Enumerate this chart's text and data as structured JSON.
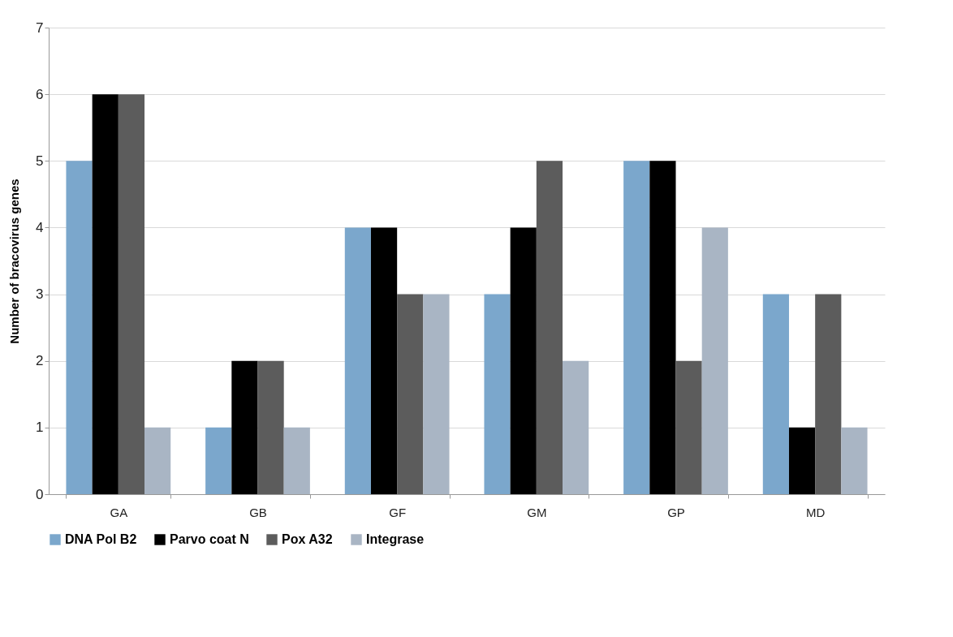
{
  "chart_data": {
    "type": "bar",
    "ylabel": "Number of bracovirus genes",
    "categories": [
      "GA",
      "GB",
      "GF",
      "GM",
      "GP",
      "MD"
    ],
    "series": [
      {
        "name": "DNA Pol B2",
        "color": "#7ba7cc",
        "values": [
          5,
          1,
          4,
          3,
          5,
          3
        ]
      },
      {
        "name": "Parvo coat N",
        "color": "#000000",
        "values": [
          6,
          2,
          4,
          4,
          5,
          1
        ]
      },
      {
        "name": "Pox A32",
        "color": "#5c5c5c",
        "values": [
          6,
          2,
          3,
          5,
          2,
          3
        ]
      },
      {
        "name": "Integrase",
        "color": "#a9b5c4",
        "values": [
          1,
          1,
          3,
          2,
          4,
          1
        ]
      }
    ],
    "ylim": [
      0,
      7
    ],
    "yticks": [
      0,
      1,
      2,
      3,
      4,
      5,
      6,
      7
    ],
    "grid": "y",
    "legend": "bottom"
  }
}
